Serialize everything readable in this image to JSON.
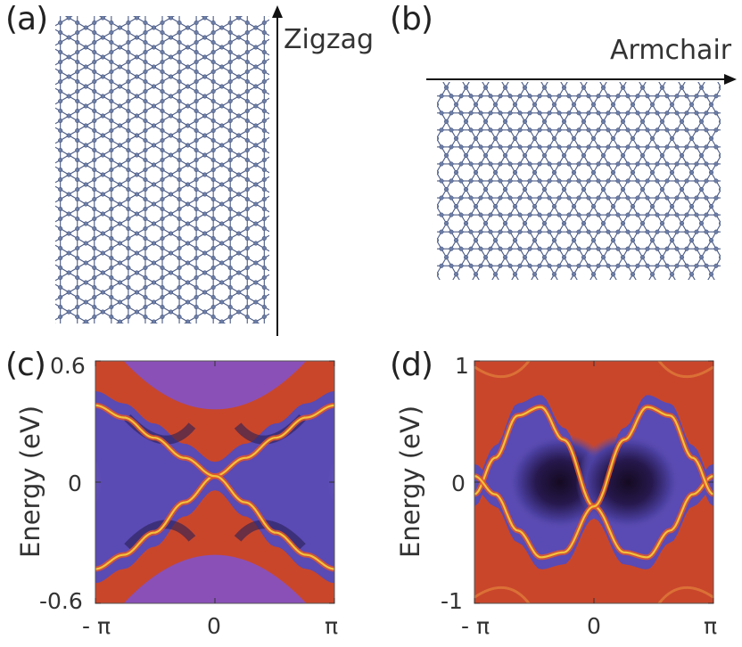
{
  "panels": {
    "a": {
      "label": "(a)",
      "direction_label": "Zigzag"
    },
    "b": {
      "label": "(b)",
      "direction_label": "Armchair"
    },
    "c": {
      "label": "(c)",
      "y_label": "Energy (eV)",
      "y_ticks": [
        "0.6",
        "0",
        "-0.6"
      ],
      "x_ticks": [
        "- π",
        "0",
        "π"
      ]
    },
    "d": {
      "label": "(d)",
      "y_label": "Energy (eV)",
      "y_ticks": [
        "1",
        "0",
        "-1"
      ],
      "x_ticks": [
        "- π",
        "0",
        "π"
      ]
    }
  },
  "colors": {
    "atom": "#6b7da6",
    "bond": "#4a5a86",
    "bulk_bg": "#c9462b",
    "gap_dark": "#1c1030",
    "gap_mid": "#5a3a9a",
    "edge_state": "#f3c23a"
  },
  "chart_data": [
    {
      "type": "heatmap",
      "panel": "c",
      "title": "",
      "xlabel": "",
      "ylabel": "Energy (eV)",
      "xlim": [
        -3.14159,
        3.14159
      ],
      "ylim": [
        -0.6,
        0.6
      ],
      "x_ticks": [
        "- π",
        "0",
        "π"
      ],
      "y_ticks": [
        0.6,
        0,
        -0.6
      ],
      "edge_states": [
        {
          "name": "",
          "k": [
            -3.14,
            -2.4,
            -1.6,
            -0.8,
            0,
            0.8,
            1.6,
            2.4,
            3.14
          ],
          "E": [
            -0.43,
            -0.36,
            -0.25,
            -0.1,
            0.03,
            0.12,
            0.22,
            0.32,
            0.38
          ]
        },
        {
          "name": "",
          "k": [
            -3.14,
            -2.4,
            -1.6,
            -0.8,
            0,
            0.8,
            1.6,
            2.4,
            3.14
          ],
          "E": [
            0.38,
            0.32,
            0.22,
            0.12,
            0.03,
            -0.1,
            -0.25,
            -0.36,
            -0.43
          ]
        }
      ]
    },
    {
      "type": "heatmap",
      "panel": "d",
      "title": "",
      "xlabel": "",
      "ylabel": "Energy (eV)",
      "xlim": [
        -3.14159,
        3.14159
      ],
      "ylim": [
        -1,
        1
      ],
      "x_ticks": [
        "- π",
        "0",
        "π"
      ],
      "y_ticks": [
        1,
        0,
        -1
      ],
      "edge_states": [
        {
          "name": "",
          "k": [
            -3.14,
            -2.6,
            -2.0,
            -1.4,
            -0.8,
            0,
            0.8,
            1.4,
            2.0,
            2.6,
            3.14
          ],
          "E": [
            -0.1,
            0.2,
            0.55,
            0.62,
            0.35,
            -0.2,
            -0.58,
            -0.62,
            -0.4,
            -0.1,
            0.05
          ]
        },
        {
          "name": "",
          "k": [
            -3.14,
            -2.6,
            -2.0,
            -1.4,
            -0.8,
            0,
            0.8,
            1.4,
            2.0,
            2.6,
            3.14
          ],
          "E": [
            0.05,
            -0.1,
            -0.4,
            -0.62,
            -0.58,
            -0.2,
            0.35,
            0.62,
            0.55,
            0.2,
            -0.1
          ]
        }
      ]
    }
  ]
}
